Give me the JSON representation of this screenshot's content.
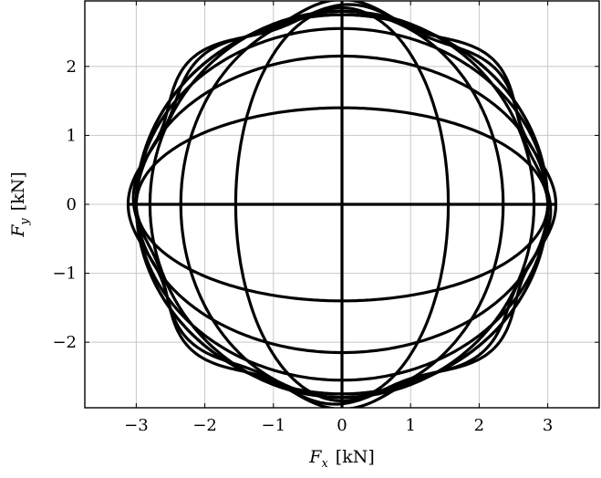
{
  "chart_data": {
    "type": "line",
    "title": "",
    "xlabel": "F_x [kN]",
    "ylabel": "F_y [kN]",
    "xlabel_parts": {
      "symbol": "F",
      "subscript": "x",
      "unit": "[kN]"
    },
    "ylabel_parts": {
      "symbol": "F",
      "subscript": "y",
      "unit": "[kN]"
    },
    "xlim": [
      -3.75,
      3.75
    ],
    "ylim": [
      -2.95,
      2.95
    ],
    "xticks": [
      -3,
      -2,
      -1,
      0,
      1,
      2,
      3
    ],
    "yticks": [
      -2,
      -1,
      0,
      1,
      2
    ],
    "xtick_labels": [
      "−3",
      "−2",
      "−1",
      "0",
      "1",
      "2",
      "3"
    ],
    "ytick_labels": [
      "−2",
      "−1",
      "0",
      "1",
      "2"
    ],
    "grid": true,
    "legend": false,
    "line_color": "#000000",
    "grid_color": "#c8c8c8",
    "series": [
      {
        "kind": "horizontal-ellipse",
        "rx": 3.0,
        "ry": 0.0,
        "x_extent": [
          -3.1,
          3.1
        ]
      },
      {
        "kind": "horizontal-ellipse",
        "rx": 3.0,
        "ry": 1.4
      },
      {
        "kind": "horizontal-ellipse",
        "rx": 3.0,
        "ry": 2.15
      },
      {
        "kind": "horizontal-ellipse",
        "rx": 3.0,
        "ry": 2.55
      },
      {
        "kind": "horizontal-ellipse",
        "rx": 3.0,
        "ry": 2.75
      },
      {
        "kind": "vertical-ellipse",
        "rx": 0.0,
        "ry": 2.95
      },
      {
        "kind": "vertical-ellipse",
        "rx": 1.55,
        "ry": 2.85
      },
      {
        "kind": "vertical-ellipse",
        "rx": 2.35,
        "ry": 2.8
      },
      {
        "kind": "vertical-ellipse",
        "rx": 2.8,
        "ry": 2.8
      },
      {
        "kind": "vertical-ellipse",
        "rx": 3.0,
        "ry": 2.75
      },
      {
        "kind": "wavy-circle",
        "r": 2.85,
        "amplitude": 0.12,
        "lobes": 8,
        "phase": 0
      },
      {
        "kind": "wavy-circle",
        "r": 2.8,
        "amplitude": 0.1,
        "lobes": 8,
        "phase": 0.39
      }
    ]
  }
}
